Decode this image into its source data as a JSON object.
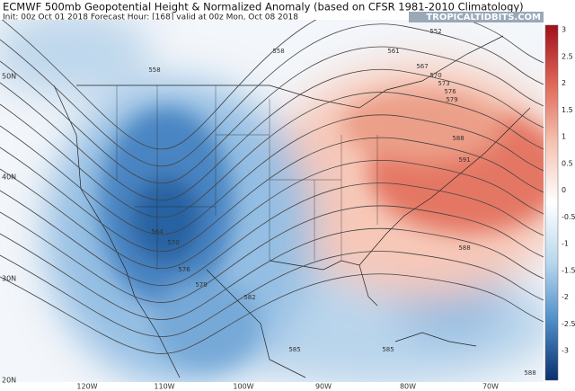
{
  "header": {
    "title": "ECMWF 500mb Geopotential Height & Normalized Anomaly (based on CFSR 1981-2010 Climatology)",
    "subtitle": "Init: 00z Oct 01 2018   Forecast Hour: [168]   valid at 00z Mon, Oct 08 2018",
    "credit": "TROPICALTIDBITS.COM"
  },
  "map": {
    "lat_labels": [
      "50N",
      "40N",
      "30N",
      "20N"
    ],
    "lon_labels": [
      "120W",
      "110W",
      "100W",
      "90W",
      "80W",
      "70W"
    ],
    "contour_labels": [
      "552",
      "558",
      "558",
      "561",
      "567",
      "570",
      "573",
      "576",
      "579",
      "588",
      "591",
      "564",
      "570",
      "576",
      "579",
      "582",
      "585",
      "585",
      "588",
      "588"
    ]
  },
  "colorbar": {
    "labels": [
      "3",
      "2.5",
      "2",
      "1.5",
      "1",
      "0.5",
      "0",
      "-0.5",
      "-1",
      "-1.5",
      "-2",
      "-2.5",
      "-3"
    ]
  }
}
